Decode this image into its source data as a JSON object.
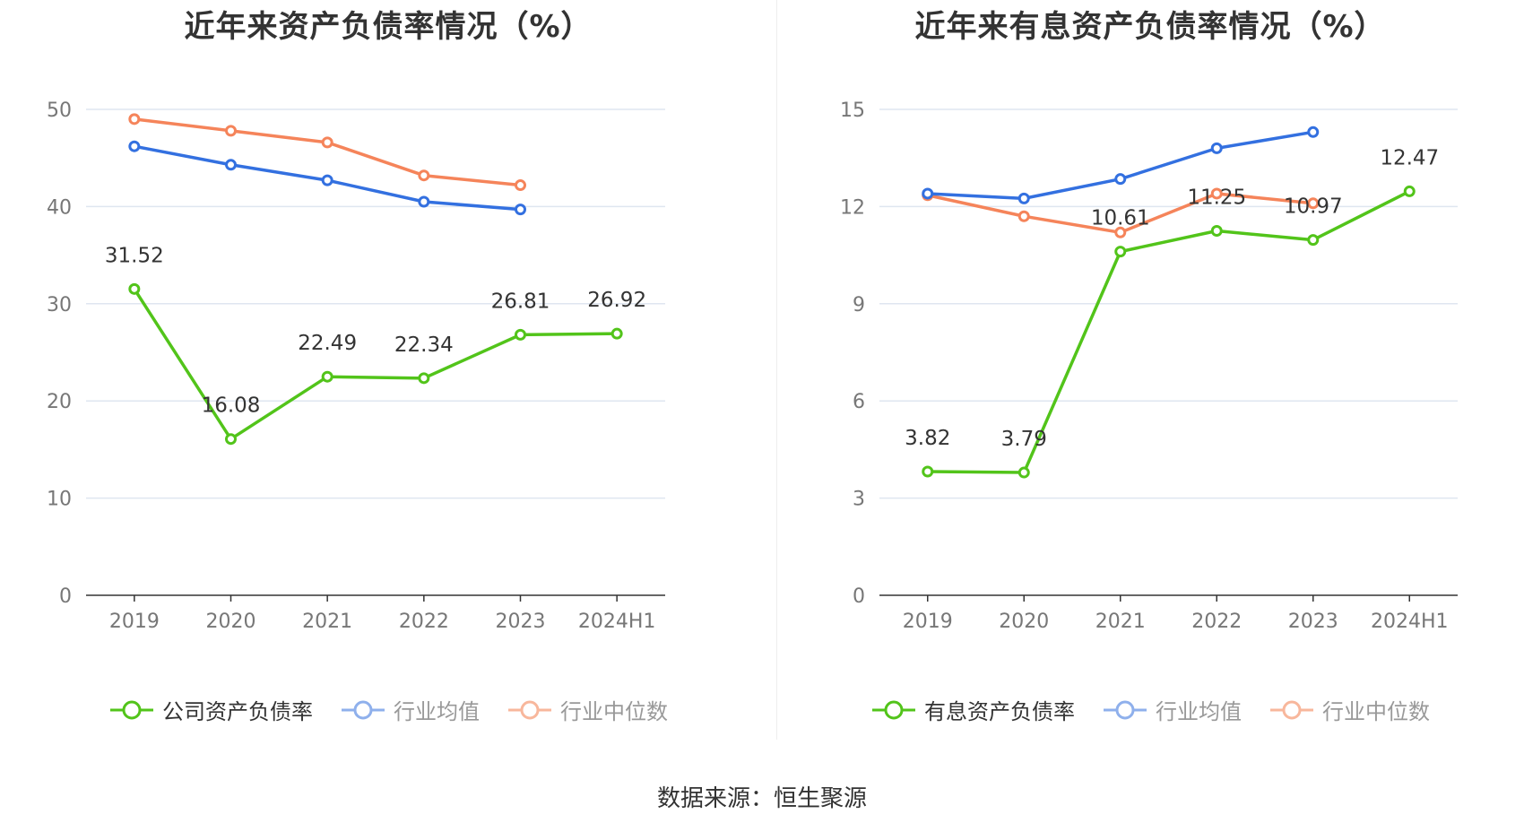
{
  "source_label": "数据来源：恒生聚源",
  "colors": {
    "company": "#52c41a",
    "average": "#3370e0",
    "median": "#f5845a",
    "grid": "#dfe6f0",
    "axis": "#333333"
  },
  "chart_data": [
    {
      "type": "line",
      "title": "近年来资产负债率情况（%）",
      "categories": [
        "2019",
        "2020",
        "2021",
        "2022",
        "2023",
        "2024H1"
      ],
      "ylim": [
        0,
        50
      ],
      "yticks": [
        0,
        10,
        20,
        30,
        40,
        50
      ],
      "grid": true,
      "legend_position": "bottom",
      "series": [
        {
          "name": "公司资产负债率",
          "key": "company",
          "values": [
            31.52,
            16.08,
            22.49,
            22.34,
            26.81,
            26.92
          ],
          "labels": [
            "31.52",
            "16.08",
            "22.49",
            "22.34",
            "26.81",
            "26.92"
          ]
        },
        {
          "name": "行业均值",
          "key": "average",
          "values": [
            46.2,
            44.3,
            42.7,
            40.5,
            39.7,
            null
          ]
        },
        {
          "name": "行业中位数",
          "key": "median",
          "values": [
            49.0,
            47.8,
            46.6,
            43.2,
            42.2,
            null
          ]
        }
      ]
    },
    {
      "type": "line",
      "title": "近年来有息资产负债率情况（%）",
      "categories": [
        "2019",
        "2020",
        "2021",
        "2022",
        "2023",
        "2024H1"
      ],
      "ylim": [
        0,
        15
      ],
      "yticks": [
        0,
        3,
        6,
        9,
        12,
        15
      ],
      "grid": true,
      "legend_position": "bottom",
      "series": [
        {
          "name": "有息资产负债率",
          "key": "company",
          "values": [
            3.82,
            3.79,
            10.61,
            11.25,
            10.97,
            12.47
          ],
          "labels": [
            "3.82",
            "3.79",
            "10.61",
            "11.25",
            "10.97",
            "12.47"
          ]
        },
        {
          "name": "行业均值",
          "key": "average",
          "values": [
            12.4,
            12.25,
            12.85,
            13.8,
            14.3,
            null
          ]
        },
        {
          "name": "行业中位数",
          "key": "median",
          "values": [
            12.35,
            11.7,
            11.2,
            12.4,
            12.1,
            null
          ]
        }
      ]
    }
  ]
}
